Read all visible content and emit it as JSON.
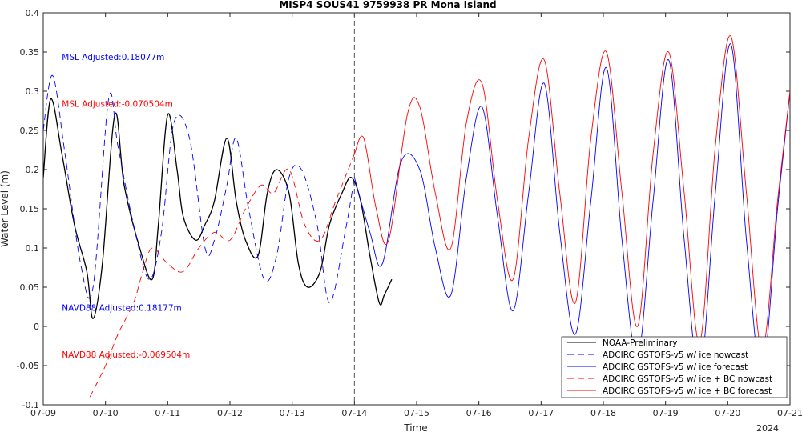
{
  "chart_data": {
    "type": "line",
    "title": "MISP4 SOUS41 9759938 PR Mona Island",
    "xlabel": "Time",
    "ylabel": "Water Level (m)",
    "xlim": [
      0,
      12
    ],
    "ylim": [
      -0.1,
      0.4
    ],
    "x_ticks": [
      "07-09",
      "07-10",
      "07-11",
      "07-12",
      "07-13",
      "07-14",
      "07-15",
      "07-16",
      "07-17",
      "07-18",
      "07-19",
      "07-20",
      "07-21"
    ],
    "x_year": "2024",
    "y_ticks": [
      -0.1,
      -0.05,
      0,
      0.05,
      0.1,
      0.15,
      0.2,
      0.25,
      0.3,
      0.35,
      0.4
    ],
    "nowcast_divider_x": 5.0,
    "grid": false,
    "legend_position": "bottom-right",
    "annotations": [
      {
        "text": "MSL Adjusted:0.18077m",
        "color": "#0000ff",
        "x": 0.3,
        "y": 0.34
      },
      {
        "text": "MSL Adjusted:-0.070504m",
        "color": "#ff0000",
        "x": 0.3,
        "y": 0.28
      },
      {
        "text": "NAVD88 Adjusted:0.18177m",
        "color": "#0000ff",
        "x": 0.3,
        "y": 0.02
      },
      {
        "text": "NAVD88 Adjusted:-0.069504m",
        "color": "#ff0000",
        "x": 0.3,
        "y": -0.04
      }
    ],
    "series": [
      {
        "name": "NOAA-Preliminary",
        "color": "#000000",
        "dash": "solid",
        "x": [
          0,
          0.12,
          0.3,
          0.5,
          0.7,
          0.8,
          0.95,
          1.15,
          1.3,
          1.55,
          1.75,
          1.85,
          2.0,
          2.15,
          2.25,
          2.45,
          2.6,
          2.75,
          2.95,
          3.1,
          3.25,
          3.45,
          3.6,
          3.75,
          3.95,
          4.1,
          4.25,
          4.45,
          4.6,
          4.8,
          4.95,
          5.1,
          5.25,
          5.4,
          5.48,
          5.6
        ],
        "y": [
          0.19,
          0.29,
          0.22,
          0.13,
          0.07,
          0.01,
          0.08,
          0.27,
          0.18,
          0.1,
          0.06,
          0.13,
          0.27,
          0.2,
          0.14,
          0.11,
          0.13,
          0.16,
          0.24,
          0.16,
          0.11,
          0.09,
          0.17,
          0.2,
          0.17,
          0.08,
          0.05,
          0.07,
          0.13,
          0.17,
          0.19,
          0.16,
          0.09,
          0.03,
          0.04,
          0.06
        ]
      },
      {
        "name": "ADCIRC GSTOFS-v5 w/ ice nowcast",
        "color": "#0000ff",
        "dash": "dashed",
        "x": [
          0,
          0.15,
          0.35,
          0.6,
          0.8,
          1.05,
          1.2,
          1.45,
          1.7,
          1.9,
          2.1,
          2.35,
          2.6,
          2.75,
          2.95,
          3.1,
          3.3,
          3.55,
          3.75,
          3.95,
          4.15,
          4.4,
          4.6,
          4.85,
          5.0
        ],
        "y": [
          0.25,
          0.32,
          0.22,
          0.08,
          0.05,
          0.29,
          0.23,
          0.13,
          0.06,
          0.12,
          0.26,
          0.24,
          0.1,
          0.11,
          0.18,
          0.24,
          0.15,
          0.06,
          0.09,
          0.19,
          0.2,
          0.13,
          0.03,
          0.12,
          0.19
        ]
      },
      {
        "name": "ADCIRC GSTOFS-v5 w/ ice forecast",
        "color": "#0000ff",
        "dash": "solid",
        "x": [
          5.0,
          5.25,
          5.45,
          5.75,
          6.05,
          6.3,
          6.55,
          6.8,
          7.05,
          7.3,
          7.55,
          7.8,
          8.05,
          8.3,
          8.55,
          8.8,
          9.05,
          9.3,
          9.55,
          9.8,
          10.05,
          10.3,
          10.55,
          10.8,
          11.05,
          11.3,
          11.55,
          11.8,
          12.0
        ],
        "y": [
          0.19,
          0.12,
          0.08,
          0.21,
          0.2,
          0.1,
          0.04,
          0.19,
          0.28,
          0.14,
          0.02,
          0.17,
          0.31,
          0.12,
          -0.01,
          0.16,
          0.33,
          0.11,
          -0.04,
          0.16,
          0.34,
          0.11,
          -0.06,
          0.17,
          0.36,
          0.11,
          -0.06,
          0.15,
          0.3
        ]
      },
      {
        "name": "ADCIRC GSTOFS-v5 w/ ice + BC nowcast",
        "color": "#ff0000",
        "dash": "dashed",
        "x": [
          0.75,
          1.0,
          1.2,
          1.45,
          1.6,
          1.75,
          2.0,
          2.25,
          2.5,
          2.75,
          3.0,
          3.25,
          3.5,
          3.7,
          3.95,
          4.2,
          4.45,
          4.7,
          5.0
        ],
        "y": [
          -0.09,
          -0.05,
          -0.01,
          0.03,
          0.07,
          0.1,
          0.08,
          0.07,
          0.1,
          0.12,
          0.11,
          0.15,
          0.18,
          0.17,
          0.2,
          0.13,
          0.11,
          0.16,
          0.22
        ]
      },
      {
        "name": "ADCIRC GSTOFS-v5 w/ ice + BC forecast",
        "color": "#ff0000",
        "dash": "solid",
        "x": [
          5.0,
          5.15,
          5.35,
          5.55,
          5.85,
          6.05,
          6.3,
          6.55,
          6.8,
          7.05,
          7.3,
          7.55,
          7.8,
          8.05,
          8.3,
          8.55,
          8.8,
          9.05,
          9.3,
          9.55,
          9.8,
          10.05,
          10.3,
          10.55,
          10.8,
          11.05,
          11.3,
          11.55,
          11.8,
          12.0
        ],
        "y": [
          0.22,
          0.24,
          0.15,
          0.11,
          0.27,
          0.28,
          0.17,
          0.1,
          0.26,
          0.31,
          0.16,
          0.06,
          0.24,
          0.34,
          0.17,
          0.03,
          0.24,
          0.35,
          0.17,
          0.0,
          0.22,
          0.35,
          0.17,
          -0.02,
          0.23,
          0.37,
          0.17,
          -0.03,
          0.16,
          0.3
        ]
      }
    ]
  }
}
